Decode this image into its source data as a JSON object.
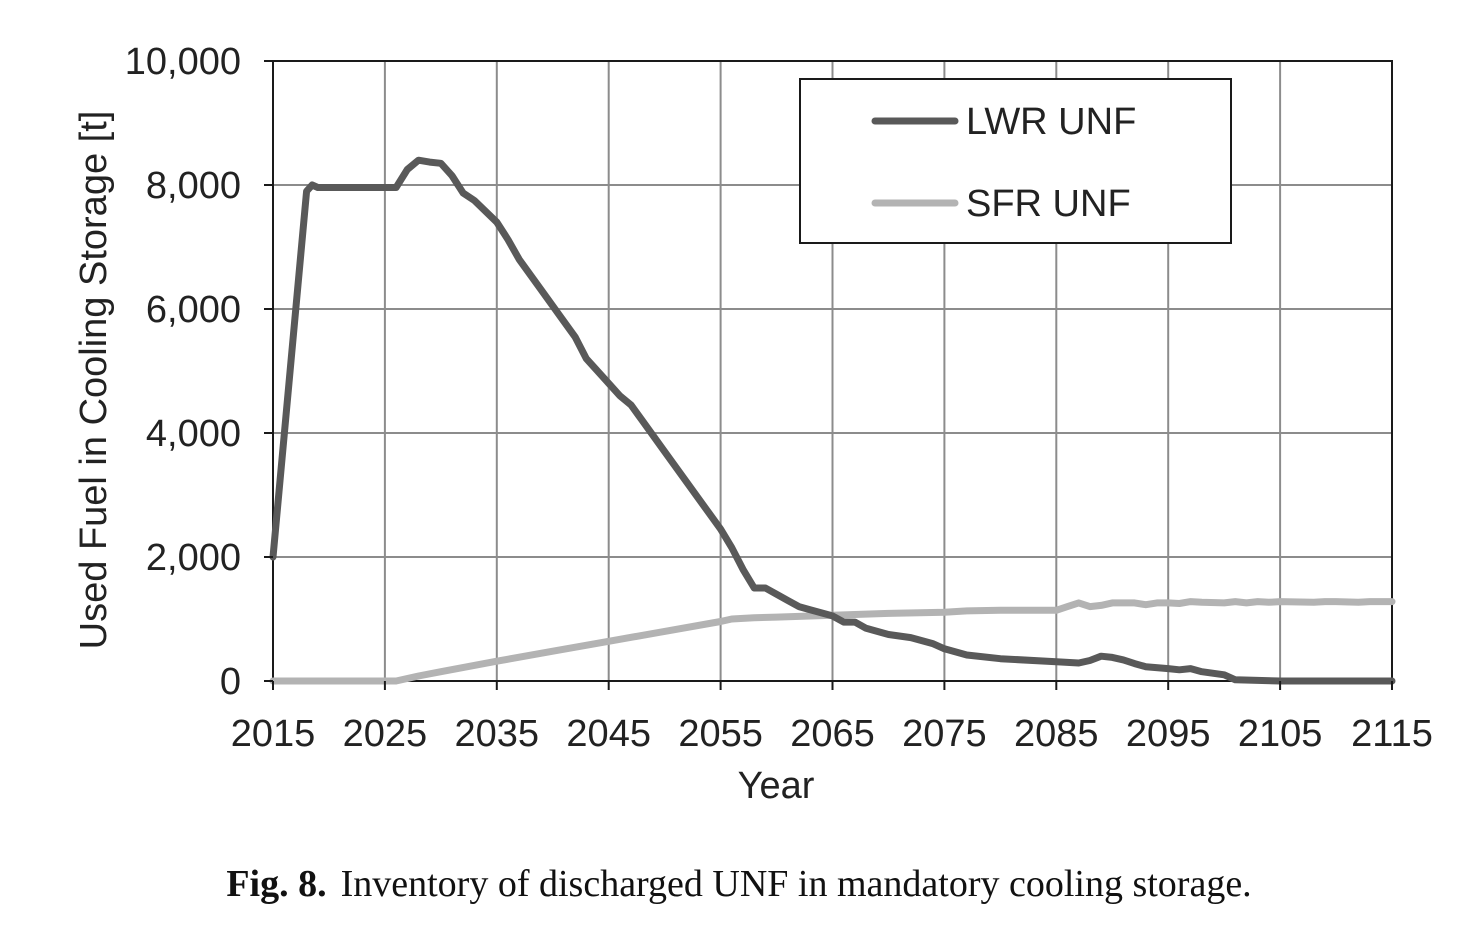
{
  "chart_data": {
    "type": "line",
    "title": "",
    "xlabel": "Year",
    "ylabel": "Used Fuel in Cooling Storage [t]",
    "xlim": [
      2015,
      2115
    ],
    "ylim": [
      0,
      10000
    ],
    "x_ticks": [
      2015,
      2025,
      2035,
      2045,
      2055,
      2065,
      2075,
      2085,
      2095,
      2105,
      2115
    ],
    "x_tick_labels": [
      "2015",
      "2025",
      "2035",
      "2045",
      "2055",
      "2065",
      "2075",
      "2085",
      "2095",
      "2105",
      "2115"
    ],
    "y_ticks": [
      0,
      2000,
      4000,
      6000,
      8000,
      10000
    ],
    "y_tick_labels": [
      "0",
      "2,000",
      "4,000",
      "6,000",
      "8,000",
      "10,000"
    ],
    "grid": true,
    "legend_position": "top-right",
    "series": [
      {
        "name": "LWR UNF",
        "color": "#595959",
        "x": [
          2015,
          2018,
          2018.5,
          2019,
          2020,
          2025,
          2026,
          2027,
          2028,
          2029,
          2030,
          2031,
          2032,
          2033,
          2035,
          2036,
          2037,
          2039,
          2041,
          2042,
          2043,
          2045,
          2046,
          2047,
          2048,
          2050,
          2052,
          2054,
          2055,
          2056,
          2057,
          2058,
          2059,
          2060,
          2061,
          2062,
          2063,
          2065,
          2066,
          2067,
          2068,
          2070,
          2072,
          2074,
          2075,
          2076,
          2077,
          2080,
          2085,
          2087,
          2088,
          2089,
          2090,
          2091,
          2092,
          2093,
          2095,
          2096,
          2097,
          2098,
          2100,
          2101,
          2105,
          2110,
          2115
        ],
        "values": [
          2000,
          7900,
          8000,
          7960,
          7960,
          7960,
          7960,
          8250,
          8400,
          8370,
          8350,
          8150,
          7870,
          7750,
          7400,
          7120,
          6800,
          6300,
          5800,
          5550,
          5200,
          4800,
          4600,
          4450,
          4200,
          3700,
          3200,
          2700,
          2450,
          2150,
          1800,
          1500,
          1500,
          1400,
          1300,
          1200,
          1150,
          1050,
          950,
          950,
          850,
          750,
          700,
          600,
          520,
          470,
          420,
          360,
          310,
          290,
          330,
          400,
          380,
          340,
          280,
          230,
          200,
          180,
          200,
          150,
          100,
          20,
          0,
          0,
          0
        ]
      },
      {
        "name": "SFR UNF",
        "color": "#b3b3b3",
        "x": [
          2015,
          2025,
          2026,
          2028,
          2030,
          2035,
          2040,
          2045,
          2050,
          2055,
          2056,
          2058,
          2060,
          2065,
          2070,
          2075,
          2077,
          2080,
          2085,
          2086,
          2087,
          2088,
          2089,
          2090,
          2092,
          2093,
          2094,
          2095,
          2096,
          2097,
          2098,
          2100,
          2101,
          2102,
          2103,
          2104,
          2105,
          2108,
          2109,
          2110,
          2112,
          2113,
          2114,
          2115
        ],
        "values": [
          0,
          0,
          0,
          80,
          150,
          320,
          480,
          640,
          800,
          960,
          1000,
          1020,
          1030,
          1060,
          1090,
          1110,
          1130,
          1140,
          1140,
          1200,
          1260,
          1200,
          1220,
          1260,
          1260,
          1230,
          1260,
          1260,
          1250,
          1280,
          1270,
          1260,
          1280,
          1260,
          1280,
          1270,
          1280,
          1270,
          1280,
          1280,
          1270,
          1280,
          1280,
          1280
        ]
      }
    ]
  },
  "caption": {
    "label": "Fig. 8.",
    "text": "Inventory of discharged UNF in mandatory cooling storage."
  }
}
